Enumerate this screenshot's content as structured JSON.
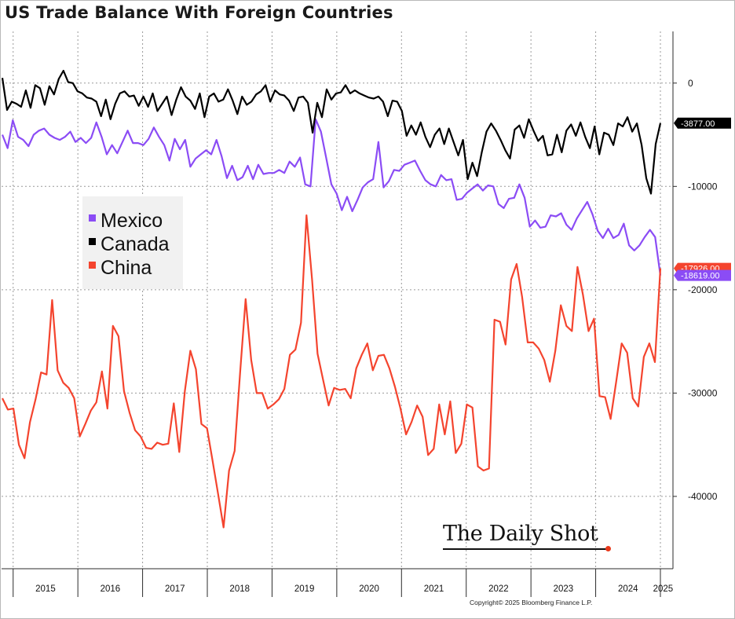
{
  "title": "US Trade Balance With Foreign Countries",
  "brand": {
    "name": "The Daily Shot",
    "mark": "®"
  },
  "copyright": "Copyright© 2025 Bloomberg Finance L.P.",
  "chart_data": {
    "type": "line",
    "title": "US Trade Balance With Foreign Countries",
    "xlabel": "",
    "ylabel": "",
    "x_start": "2014-11",
    "x_end": "2025-01",
    "x_ticks": [
      "2015",
      "2016",
      "2017",
      "2018",
      "2019",
      "2020",
      "2021",
      "2022",
      "2023",
      "2024",
      "2025"
    ],
    "ylim": [
      -47000,
      5000
    ],
    "y_ticks": [
      0,
      -10000,
      -20000,
      -30000,
      -40000
    ],
    "y_tick_labels": [
      "0",
      "-10000",
      "-20000",
      "-30000",
      "-40000"
    ],
    "grid": true,
    "legend_position": "left",
    "series": [
      {
        "name": "Mexico",
        "color": "#8b4cf5",
        "last_value_label": "-18619.00",
        "values": [
          -5000,
          -6300,
          -3600,
          -5200,
          -5500,
          -6100,
          -5000,
          -4600,
          -4400,
          -5000,
          -5300,
          -5500,
          -5200,
          -4700,
          -5700,
          -5300,
          -5800,
          -5300,
          -3800,
          -5200,
          -6900,
          -6000,
          -6800,
          -5700,
          -4600,
          -5800,
          -5800,
          -6000,
          -5400,
          -4300,
          -5200,
          -6000,
          -7500,
          -5400,
          -6400,
          -5500,
          -8100,
          -7300,
          -6900,
          -6500,
          -6900,
          -5500,
          -7100,
          -9200,
          -8000,
          -9400,
          -9100,
          -8000,
          -9300,
          -7900,
          -8800,
          -8700,
          -8700,
          -8400,
          -8700,
          -7600,
          -8100,
          -7200,
          -9800,
          -10000,
          -3500,
          -4700,
          -7200,
          -9800,
          -10700,
          -12300,
          -11000,
          -12400,
          -11300,
          -10100,
          -9600,
          -9300,
          -5700,
          -10100,
          -9500,
          -8400,
          -8500,
          -7900,
          -7700,
          -7500,
          -8500,
          -9400,
          -9800,
          -10000,
          -8900,
          -9400,
          -9300,
          -11300,
          -11200,
          -10600,
          -10200,
          -9800,
          -10400,
          -9900,
          -10000,
          -11700,
          -12100,
          -11200,
          -11100,
          -9800,
          -11100,
          -13900,
          -13300,
          -14000,
          -13900,
          -12800,
          -12900,
          -12600,
          -13700,
          -14200,
          -13100,
          -12300,
          -11500,
          -12700,
          -14300,
          -15000,
          -14100,
          -15000,
          -14700,
          -13600,
          -15700,
          -16200,
          -15700,
          -14900,
          -14200,
          -14900,
          -18619
        ]
      },
      {
        "name": "Canada",
        "color": "#000000",
        "last_value_label": "-3877.00",
        "values": [
          500,
          -2600,
          -1800,
          -2000,
          -2300,
          -700,
          -2400,
          -200,
          -500,
          -2100,
          -300,
          -1100,
          400,
          1200,
          100,
          0,
          -800,
          -1000,
          -1400,
          -1500,
          -1800,
          -3200,
          -1600,
          -3500,
          -2000,
          -1000,
          -800,
          -1300,
          -1200,
          -2200,
          -1300,
          -2300,
          -1000,
          -2700,
          -2000,
          -1300,
          -3100,
          -1600,
          -400,
          -1300,
          -1700,
          -2500,
          -1000,
          -3300,
          -1300,
          -1000,
          -1800,
          -1600,
          -600,
          -1700,
          -3000,
          -1300,
          -2100,
          -1800,
          -1100,
          -800,
          -200,
          -1800,
          -700,
          -1100,
          -1200,
          -1700,
          -2700,
          -1400,
          -1300,
          -1900,
          -4800,
          -1900,
          -3300,
          -600,
          -1600,
          -1000,
          -900,
          -200,
          -1000,
          -700,
          -1000,
          -1200,
          -1400,
          -1500,
          -1300,
          -1800,
          -3200,
          -1700,
          -1800,
          -2700,
          -5100,
          -4100,
          -5000,
          -3800,
          -5200,
          -6200,
          -5000,
          -4400,
          -5900,
          -4400,
          -5700,
          -7000,
          -5500,
          -9300,
          -7700,
          -9000,
          -6700,
          -4700,
          -3900,
          -4600,
          -5500,
          -6500,
          -7300,
          -4500,
          -4100,
          -5300,
          -3500,
          -4600,
          -5600,
          -5100,
          -7000,
          -6900,
          -5000,
          -6700,
          -4600,
          -4000,
          -5100,
          -3800,
          -5200,
          -6300,
          -4200,
          -6900,
          -4800,
          -5000,
          -6000,
          -3900,
          -4200,
          -3300,
          -4700,
          -3900,
          -6000,
          -9200,
          -10700,
          -5900,
          -3877
        ]
      },
      {
        "name": "China",
        "color": "#f4442e",
        "last_value_label": "-17926.00",
        "values": [
          -30500,
          -31600,
          -31500,
          -35000,
          -36300,
          -32800,
          -30600,
          -28000,
          -28200,
          -21000,
          -27800,
          -29000,
          -29500,
          -30500,
          -34200,
          -33000,
          -31700,
          -30900,
          -27900,
          -31500,
          -23500,
          -24500,
          -29800,
          -31900,
          -33600,
          -34200,
          -35300,
          -35400,
          -34800,
          -35000,
          -34900,
          -31000,
          -35700,
          -29800,
          -25900,
          -27700,
          -33000,
          -33400,
          -36500,
          -39700,
          -43000,
          -37500,
          -35600,
          -28000,
          -20900,
          -26800,
          -30000,
          -30000,
          -31500,
          -31100,
          -30600,
          -29600,
          -26300,
          -25800,
          -23200,
          -12800,
          -19000,
          -26200,
          -28700,
          -31200,
          -29500,
          -29700,
          -29600,
          -30500,
          -27600,
          -26300,
          -25200,
          -27800,
          -26400,
          -26300,
          -27600,
          -29400,
          -31500,
          -34000,
          -32800,
          -31200,
          -32300,
          -36000,
          -35400,
          -31100,
          -34000,
          -30800,
          -35800,
          -34900,
          -31100,
          -31400,
          -37100,
          -37500,
          -37300,
          -22900,
          -23100,
          -25300,
          -19000,
          -17500,
          -20700,
          -25100,
          -25100,
          -25700,
          -26800,
          -28900,
          -25900,
          -21500,
          -23500,
          -24000,
          -17800,
          -20500,
          -24000,
          -22800,
          -30300,
          -30400,
          -32500,
          -28900,
          -25200,
          -26100,
          -30500,
          -31300,
          -26500,
          -25200,
          -27000,
          -17926
        ]
      }
    ]
  }
}
